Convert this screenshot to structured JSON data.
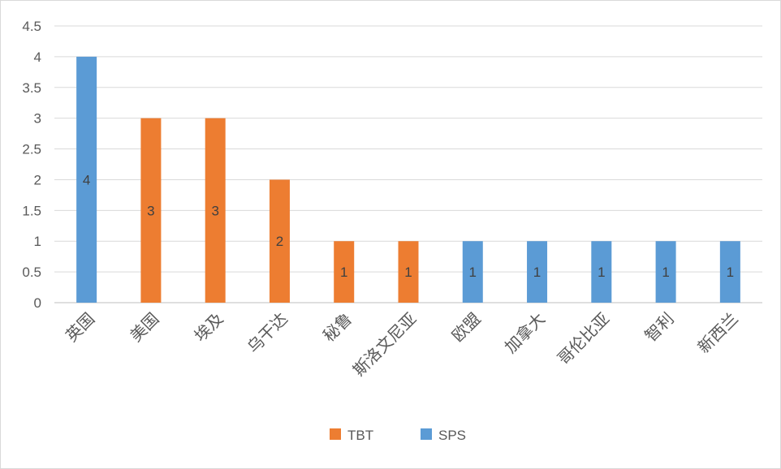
{
  "chart_data": {
    "type": "bar",
    "title": "",
    "xlabel": "",
    "ylabel": "",
    "ylim": [
      0,
      4.5
    ],
    "yticks": [
      "0",
      "0.5",
      "1",
      "1.5",
      "2",
      "2.5",
      "3",
      "3.5",
      "4",
      "4.5"
    ],
    "grid": true,
    "legend_position": "bottom",
    "categories": [
      "英国",
      "美国",
      "埃及",
      "乌干达",
      "秘鲁",
      "斯洛文尼亚",
      "欧盟",
      "加拿大",
      "哥伦比亚",
      "智利",
      "新西兰"
    ],
    "values": [
      4,
      3,
      3,
      2,
      1,
      1,
      1,
      1,
      1,
      1,
      1
    ],
    "data_labels": [
      "4",
      "3",
      "3",
      "2",
      "1",
      "1",
      "1",
      "1",
      "1",
      "1",
      "1"
    ],
    "value_series": [
      "SPS",
      "TBT",
      "TBT",
      "TBT",
      "TBT",
      "TBT",
      "SPS",
      "SPS",
      "SPS",
      "SPS",
      "SPS"
    ],
    "series": [
      {
        "name": "TBT",
        "color": "#ed7d31"
      },
      {
        "name": "SPS",
        "color": "#5b9bd5"
      }
    ]
  }
}
